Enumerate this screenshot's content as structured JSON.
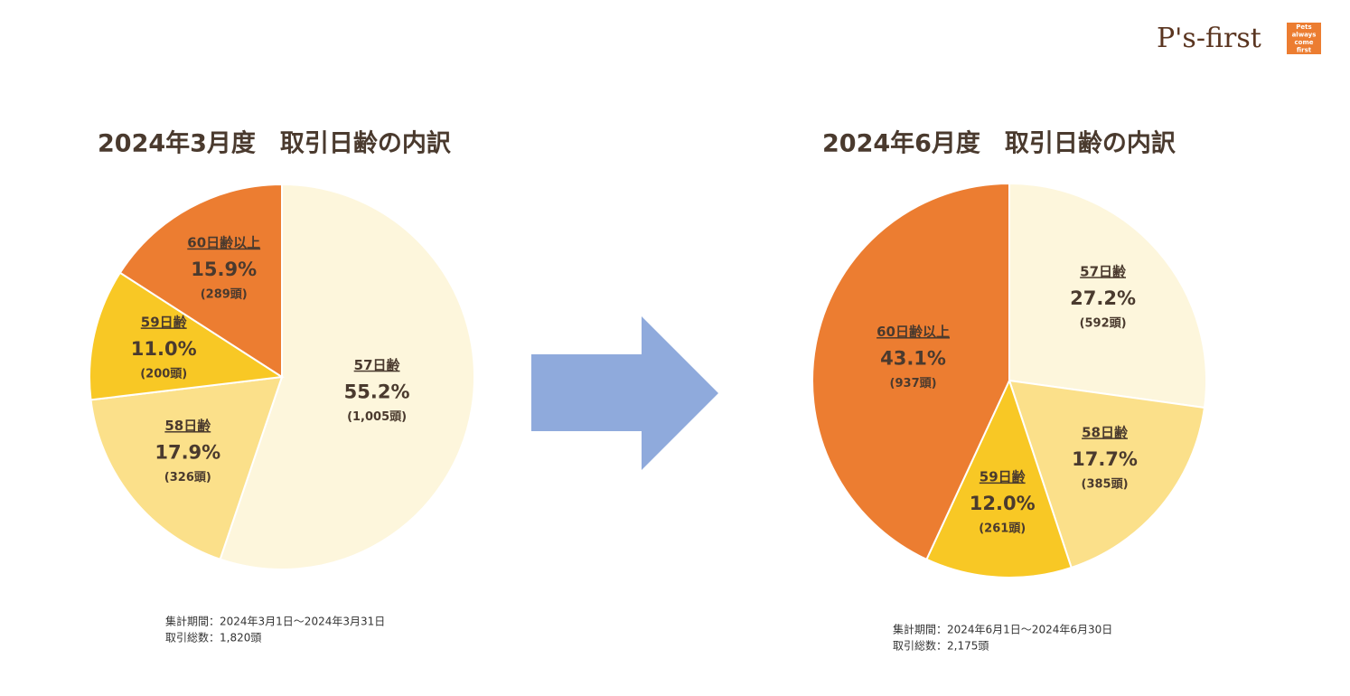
{
  "logo": {
    "name": "P's-first",
    "tagline": [
      "Pets",
      "always",
      "come",
      "first"
    ]
  },
  "chart_data": [
    {
      "type": "pie",
      "title": "2024年3月度　取引日齢の内訳",
      "categories": [
        "57日齢",
        "58日齢",
        "59日齢",
        "60日齢以上"
      ],
      "values": [
        55.2,
        17.9,
        11.0,
        15.9
      ],
      "value_labels": [
        "55.2%",
        "17.9%",
        "11.0%",
        "15.9%"
      ],
      "count_labels": [
        "(1,005頭)",
        "(326頭)",
        "(200頭)",
        "(289頭)"
      ],
      "colors": [
        "#fdf6dc",
        "#fbe08a",
        "#f8c825",
        "#ec7d31"
      ],
      "notes": [
        "集計期間：2024年3月1日〜2024年3月31日",
        "取引総数：1,820頭"
      ]
    },
    {
      "type": "pie",
      "title": "2024年6月度　取引日齢の内訳",
      "categories": [
        "57日齢",
        "58日齢",
        "59日齢",
        "60日齢以上"
      ],
      "values": [
        27.2,
        17.7,
        12.0,
        43.1
      ],
      "value_labels": [
        "27.2%",
        "17.7%",
        "12.0%",
        "43.1%"
      ],
      "count_labels": [
        "(592頭)",
        "(385頭)",
        "(261頭)",
        "(937頭)"
      ],
      "colors": [
        "#fdf6dc",
        "#fbe08a",
        "#f8c825",
        "#ec7d31"
      ],
      "notes": [
        "集計期間：2024年6月1日〜2024年6月30日",
        "取引総数：2,175頭"
      ]
    }
  ]
}
